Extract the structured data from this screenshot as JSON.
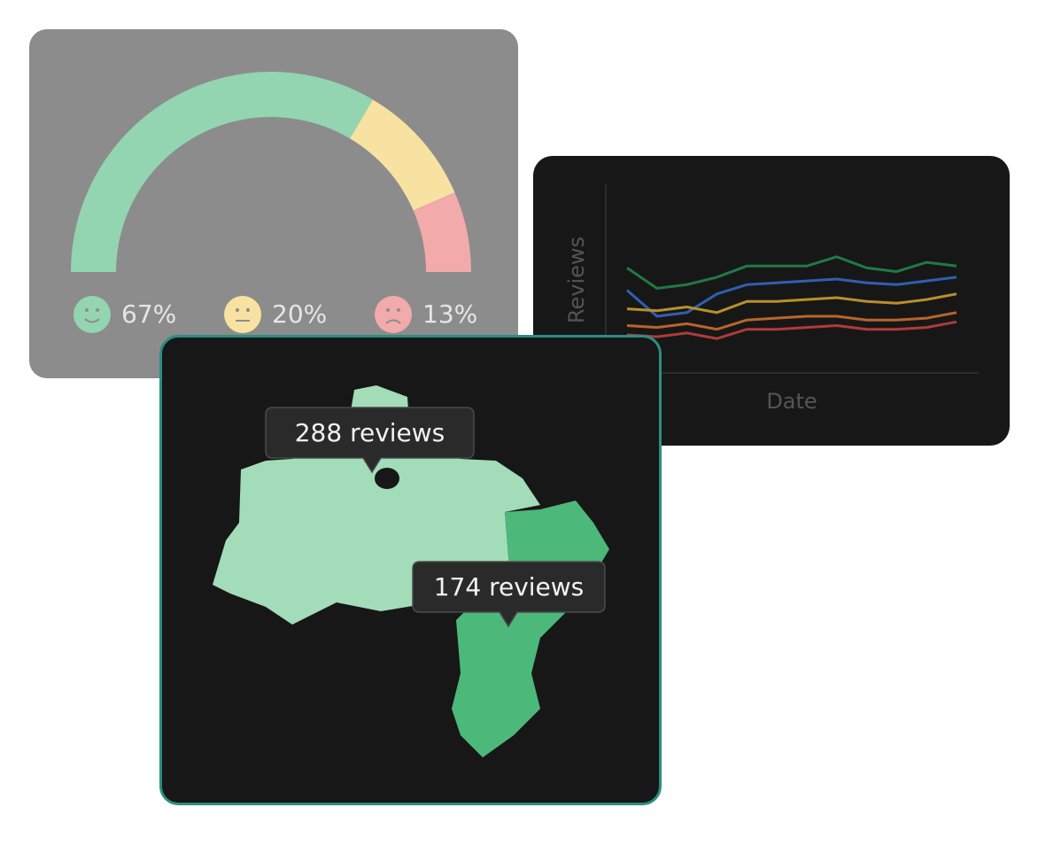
{
  "chart_data": [
    {
      "type": "gauge",
      "values": [
        67,
        20,
        13
      ],
      "value_labels": [
        "67%",
        "20%",
        "13%"
      ],
      "colors": [
        "#93d5b0",
        "#f7e2a2",
        "#f2aaaa"
      ]
    },
    {
      "type": "line",
      "ylabel": "Reviews",
      "xlabel": "Date",
      "ylim": [
        0,
        100
      ],
      "series": [
        {
          "color": "#1f7a45",
          "values": [
            56,
            45,
            47,
            51,
            57,
            57,
            57,
            62,
            56,
            54,
            59,
            57
          ]
        },
        {
          "color": "#2f5fb0",
          "values": [
            44,
            30,
            32,
            42,
            47,
            48,
            49,
            50,
            48,
            47,
            49,
            51
          ]
        },
        {
          "color": "#b8902a",
          "values": [
            34,
            33,
            35,
            32,
            38,
            38,
            39,
            40,
            38,
            37,
            39,
            42
          ]
        },
        {
          "color": "#b8652a",
          "values": [
            25,
            24,
            26,
            23,
            28,
            29,
            30,
            30,
            28,
            28,
            29,
            32
          ]
        },
        {
          "color": "#b03a3a",
          "values": [
            20,
            19,
            21,
            18,
            23,
            23,
            24,
            25,
            23,
            23,
            24,
            27
          ]
        }
      ]
    },
    {
      "type": "map",
      "values": [
        288,
        174
      ],
      "value_labels": [
        "288 reviews",
        "174 reviews"
      ],
      "colors": [
        "#a3dcb8",
        "#4cb87a"
      ]
    }
  ]
}
